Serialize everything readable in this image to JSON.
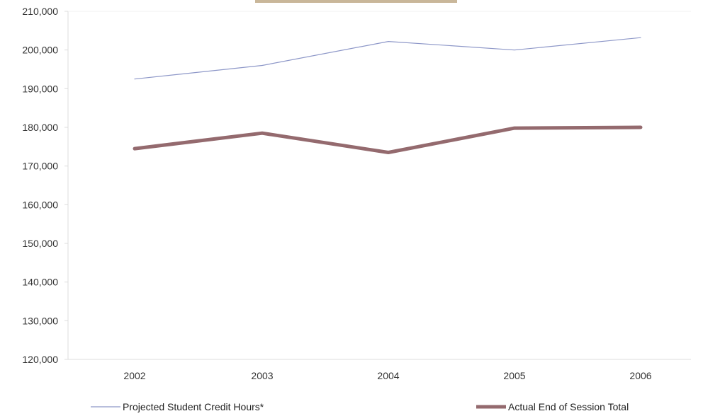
{
  "chart_data": {
    "type": "line",
    "x": [
      "2002",
      "2003",
      "2004",
      "2005",
      "2006"
    ],
    "ylim": [
      120000,
      210000
    ],
    "yticks": [
      "120,000",
      "130,000",
      "140,000",
      "150,000",
      "160,000",
      "170,000",
      "180,000",
      "190,000",
      "200,000",
      "210,000"
    ],
    "ytick_values": [
      120000,
      130000,
      140000,
      150000,
      160000,
      170000,
      180000,
      190000,
      200000,
      210000
    ],
    "grid": false,
    "legend_position": "bottom",
    "series": [
      {
        "name": "Projected Student Credit Hours*",
        "values": [
          192500,
          196000,
          202200,
          200000,
          203200
        ],
        "color": "#8d97c8"
      },
      {
        "name": "Actual End of Session Total",
        "values": [
          174500,
          178500,
          173500,
          179800,
          180000
        ],
        "color": "#946a6e"
      }
    ]
  }
}
